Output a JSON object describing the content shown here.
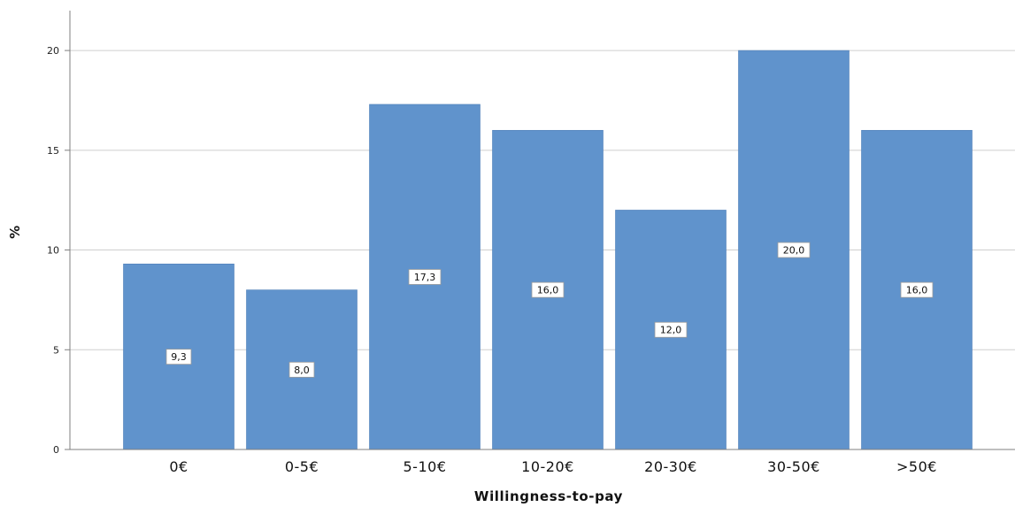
{
  "chart_data": {
    "type": "bar",
    "categories": [
      "0€",
      "0-5€",
      "5-10€",
      "10-20€",
      "20-30€",
      "30-50€",
      ">50€"
    ],
    "values": [
      9.3,
      8.0,
      17.3,
      16.0,
      12.0,
      20.0,
      16.0
    ],
    "data_labels": [
      "9,3",
      "8,0",
      "17,3",
      "16,0",
      "12,0",
      "20,0",
      "16,0"
    ],
    "xlabel": "Willingness-to-pay",
    "ylabel": "%",
    "yticks": [
      0,
      5,
      10,
      15,
      20
    ],
    "ylim": [
      0,
      22
    ],
    "grid": "horizontal",
    "colors": {
      "bar": "#6093cc",
      "grid": "#cfcfcf",
      "axis": "#7f7f7f"
    }
  }
}
